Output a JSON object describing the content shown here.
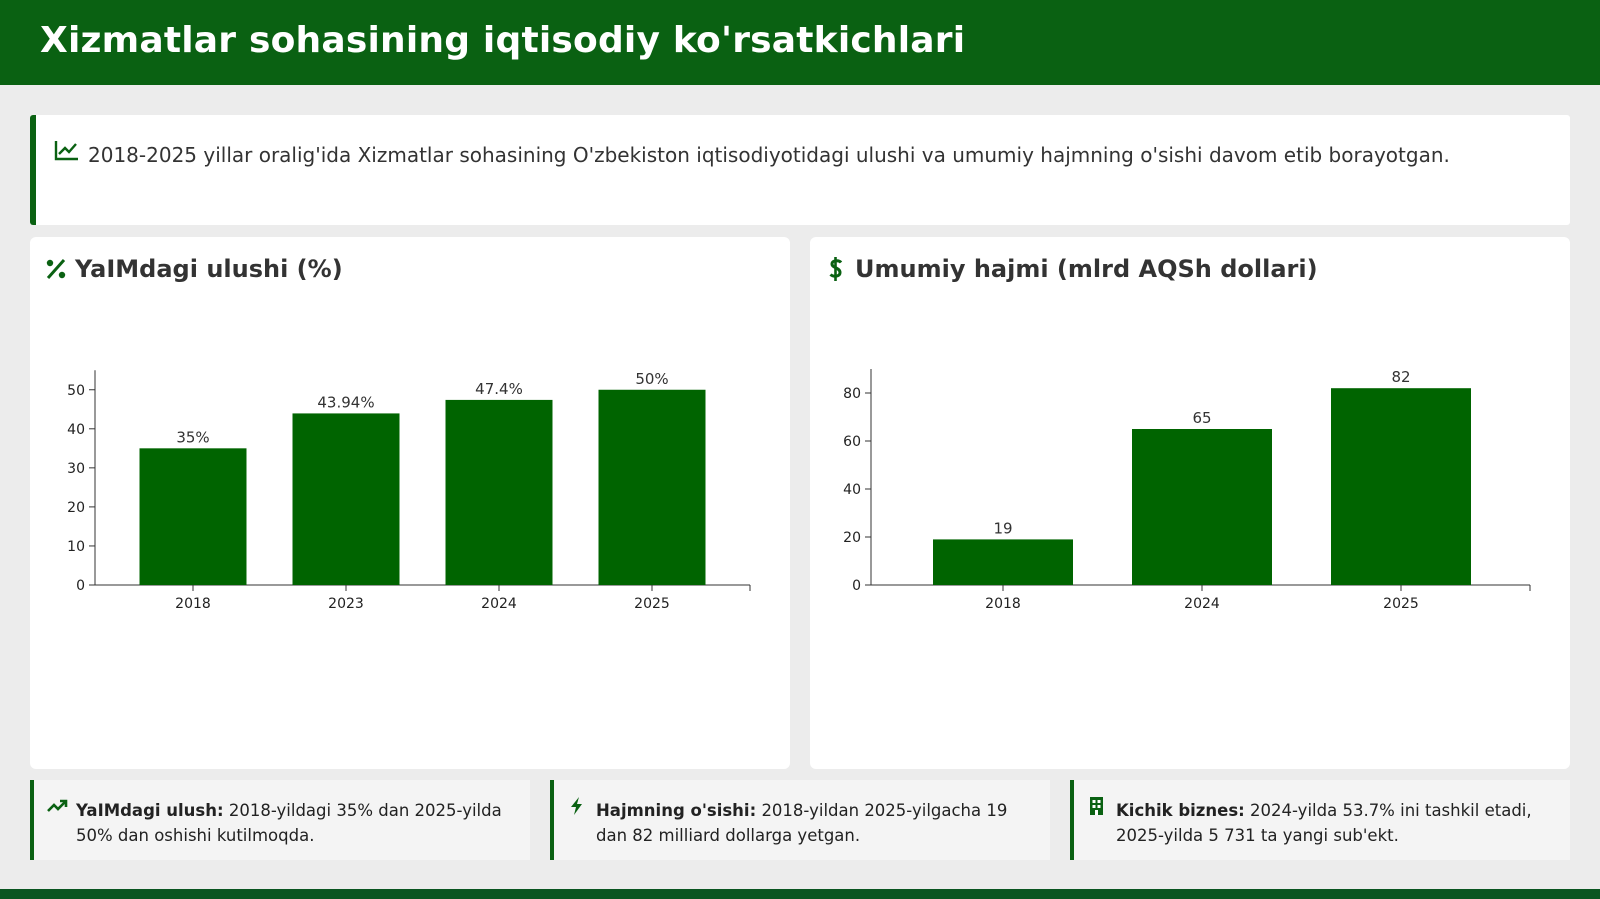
{
  "header": {
    "title": "Xizmatlar sohasining iqtisodiy ko'rsatkichlari"
  },
  "intro": {
    "icon": "line-chart-icon",
    "text": "2018-2025 yillar oralig'ida Xizmatlar sohasining O'zbekiston iqtisodiyotidagi ulushi va umumiy hajmning o'sishi davom etib borayotgan."
  },
  "colors": {
    "brand": "#0a6112",
    "bar": "#006400"
  },
  "chart_data": [
    {
      "type": "bar",
      "title": "YaIMdagi ulushi (%)",
      "icon": "percent-icon",
      "categories": [
        "2018",
        "2023",
        "2024",
        "2025"
      ],
      "values": [
        35,
        43.94,
        47.4,
        50
      ],
      "value_labels": [
        "35%",
        "43.94%",
        "47.4%",
        "50%"
      ],
      "ylim": [
        0,
        55
      ],
      "yticks": [
        0,
        10,
        20,
        30,
        40,
        50
      ],
      "xlabel": "",
      "ylabel": "",
      "grid": false
    },
    {
      "type": "bar",
      "title": "Umumiy hajmi (mlrd AQSh dollari)",
      "icon": "dollar-icon",
      "categories": [
        "2018",
        "2024",
        "2025"
      ],
      "values": [
        19,
        65,
        82
      ],
      "value_labels": [
        "19",
        "65",
        "82"
      ],
      "ylim": [
        0,
        90
      ],
      "yticks": [
        0,
        20,
        40,
        60,
        80
      ],
      "xlabel": "",
      "ylabel": "",
      "grid": false
    }
  ],
  "cards": [
    {
      "icon": "trend-up-icon",
      "label": "YaIMdagi ulush:",
      "text": "2018-yildagi 35% dan 2025-yilda 50% dan oshishi kutilmoqda."
    },
    {
      "icon": "lightning-icon",
      "label": "Hajmning o'sishi:",
      "text": "2018-yildan 2025-yilgacha 19 dan 82 milliard dollarga yetgan."
    },
    {
      "icon": "building-icon",
      "label": "Kichik biznes:",
      "text": "2024-yilda 53.7% ini tashkil etadi, 2025-yilda 5 731 ta yangi sub'ekt."
    }
  ]
}
